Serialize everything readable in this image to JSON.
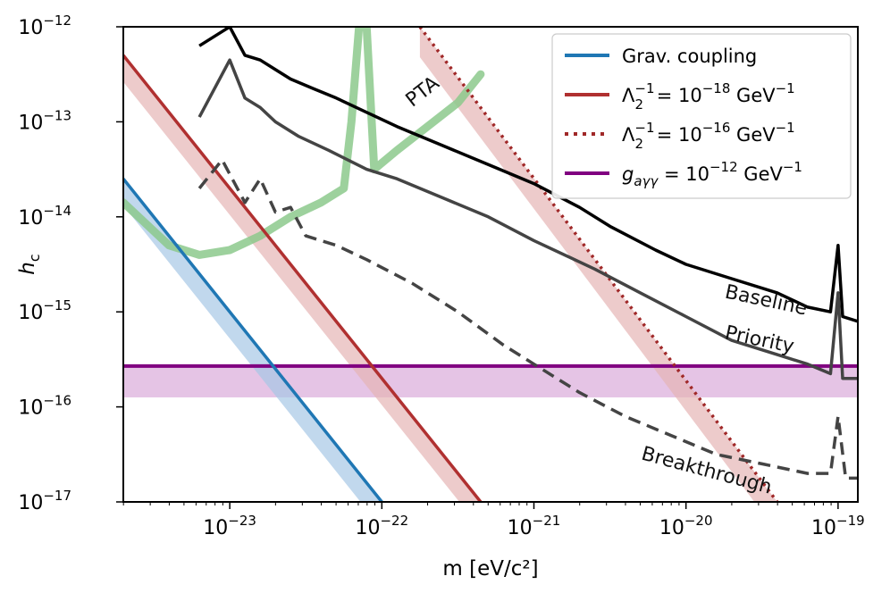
{
  "chart_data": {
    "type": "line",
    "x_scale": "log",
    "y_scale": "log",
    "xlim_log10": [
      -23.7,
      -18.87
    ],
    "ylim_log10": [
      -17,
      -12
    ],
    "xlabel": "m [eV/c²]",
    "ylabel": "h_c",
    "x_ticks": [
      {
        "exp": -23,
        "label_base": "10",
        "label_exp": "−23"
      },
      {
        "exp": -22,
        "label_base": "10",
        "label_exp": "−22"
      },
      {
        "exp": -21,
        "label_base": "10",
        "label_exp": "−21"
      },
      {
        "exp": -20,
        "label_base": "10",
        "label_exp": "−20"
      },
      {
        "exp": -19,
        "label_base": "10",
        "label_exp": "−19"
      }
    ],
    "y_ticks": [
      {
        "exp": -12,
        "label_base": "10",
        "label_exp": "−12"
      },
      {
        "exp": -13,
        "label_base": "10",
        "label_exp": "−13"
      },
      {
        "exp": -14,
        "label_base": "10",
        "label_exp": "−14"
      },
      {
        "exp": -15,
        "label_base": "10",
        "label_exp": "−15"
      },
      {
        "exp": -16,
        "label_base": "10",
        "label_exp": "−16"
      },
      {
        "exp": -17,
        "label_base": "10",
        "label_exp": "−17"
      }
    ],
    "series": [
      {
        "name": "Baseline",
        "label": "Baseline",
        "color": "#000000",
        "style": "solid",
        "points_log10": [
          [
            -23.2,
            -12.2
          ],
          [
            -23.05,
            -12.05
          ],
          [
            -23.0,
            -12.0
          ],
          [
            -22.9,
            -12.3
          ],
          [
            -22.8,
            -12.35
          ],
          [
            -22.7,
            -12.45
          ],
          [
            -22.6,
            -12.55
          ],
          [
            -22.45,
            -12.65
          ],
          [
            -22.3,
            -12.75
          ],
          [
            -22.1,
            -12.9
          ],
          [
            -21.9,
            -13.05
          ],
          [
            -21.6,
            -13.25
          ],
          [
            -21.3,
            -13.45
          ],
          [
            -21.0,
            -13.65
          ],
          [
            -20.7,
            -13.9
          ],
          [
            -20.5,
            -14.1
          ],
          [
            -20.2,
            -14.35
          ],
          [
            -20.0,
            -14.5
          ],
          [
            -19.7,
            -14.65
          ],
          [
            -19.4,
            -14.8
          ],
          [
            -19.2,
            -14.95
          ],
          [
            -19.05,
            -15.0
          ],
          [
            -19.0,
            -14.3
          ],
          [
            -18.97,
            -15.05
          ],
          [
            -18.87,
            -15.1
          ]
        ]
      },
      {
        "name": "Priority",
        "label": "Priority",
        "color": "#444444",
        "style": "solid",
        "points_log10": [
          [
            -23.2,
            -12.95
          ],
          [
            -23.0,
            -12.35
          ],
          [
            -22.9,
            -12.75
          ],
          [
            -22.8,
            -12.85
          ],
          [
            -22.7,
            -13.0
          ],
          [
            -22.55,
            -13.15
          ],
          [
            -22.35,
            -13.3
          ],
          [
            -22.1,
            -13.5
          ],
          [
            -21.9,
            -13.6
          ],
          [
            -21.6,
            -13.8
          ],
          [
            -21.3,
            -14.0
          ],
          [
            -21.0,
            -14.25
          ],
          [
            -20.6,
            -14.55
          ],
          [
            -20.3,
            -14.8
          ],
          [
            -20.0,
            -15.05
          ],
          [
            -19.7,
            -15.3
          ],
          [
            -19.4,
            -15.45
          ],
          [
            -19.2,
            -15.55
          ],
          [
            -19.05,
            -15.65
          ],
          [
            -19.0,
            -14.8
          ],
          [
            -18.97,
            -15.7
          ],
          [
            -18.87,
            -15.7
          ]
        ]
      },
      {
        "name": "Breakthrough",
        "label": "Breakthrough",
        "color": "#444444",
        "style": "dashed",
        "points_log10": [
          [
            -23.2,
            -13.7
          ],
          [
            -23.05,
            -13.4
          ],
          [
            -22.9,
            -13.85
          ],
          [
            -22.8,
            -13.6
          ],
          [
            -22.7,
            -13.95
          ],
          [
            -22.6,
            -13.9
          ],
          [
            -22.5,
            -14.2
          ],
          [
            -22.3,
            -14.3
          ],
          [
            -22.1,
            -14.45
          ],
          [
            -21.8,
            -14.7
          ],
          [
            -21.5,
            -15.0
          ],
          [
            -21.2,
            -15.35
          ],
          [
            -21.0,
            -15.55
          ],
          [
            -20.7,
            -15.85
          ],
          [
            -20.4,
            -16.1
          ],
          [
            -20.1,
            -16.3
          ],
          [
            -19.8,
            -16.5
          ],
          [
            -19.5,
            -16.6
          ],
          [
            -19.2,
            -16.7
          ],
          [
            -19.05,
            -16.7
          ],
          [
            -19.0,
            -16.1
          ],
          [
            -18.95,
            -16.75
          ],
          [
            -18.87,
            -16.75
          ]
        ]
      },
      {
        "name": "PTA",
        "label": "PTA",
        "color": "#8cc98c",
        "style": "thick",
        "points_log10": [
          [
            -23.7,
            -13.85
          ],
          [
            -23.4,
            -14.3
          ],
          [
            -23.2,
            -14.4
          ],
          [
            -23.0,
            -14.35
          ],
          [
            -22.8,
            -14.2
          ],
          [
            -22.6,
            -14.0
          ],
          [
            -22.4,
            -13.85
          ],
          [
            -22.25,
            -13.7
          ],
          [
            -22.2,
            -13.0
          ],
          [
            -22.15,
            -12.0
          ],
          [
            -22.1,
            -12.0
          ],
          [
            -22.05,
            -13.5
          ],
          [
            -21.9,
            -13.3
          ],
          [
            -21.7,
            -13.05
          ],
          [
            -21.5,
            -12.8
          ],
          [
            -21.35,
            -12.5
          ]
        ]
      }
    ],
    "band_lines": [
      {
        "name": "Grav. coupling",
        "color": "#1f77b4",
        "band_color": "#a6c8e6",
        "x_log10": [
          -23.7,
          -22.0
        ],
        "y_log10": [
          -13.6,
          -17.0
        ],
        "band_dy_log10": 0.28,
        "band_side": "below"
      },
      {
        "name": "Λ2−1 = 10−18 GeV−1",
        "color": "#b03030",
        "band_color": "#e5b5b5",
        "x_log10": [
          -23.7,
          -21.35
        ],
        "y_log10": [
          -12.3,
          -17.0
        ],
        "band_dy_log10": 0.28,
        "band_side": "below"
      },
      {
        "name": "Λ2−1 = 10−16 GeV−1",
        "color": "#a02828",
        "band_color": "#e5b5b5",
        "x_log10": [
          -21.75,
          -19.4
        ],
        "y_log10": [
          -12.0,
          -17.0
        ],
        "band_dy_log10": 0.32,
        "band_side": "below",
        "dotted": true
      }
    ],
    "horizontal_band": {
      "name": "gaγγ = 10−12 GeV−1",
      "color": "#800080",
      "band_color": "#dcb0dc",
      "y_log10": -15.57,
      "band_dy_log10": 0.33
    },
    "annotations": [
      {
        "text": "Baseline",
        "x_log10": -19.75,
        "y_log10": -14.85,
        "angle": 12
      },
      {
        "text": "Priority",
        "x_log10": -19.75,
        "y_log10": -15.28,
        "angle": 12
      },
      {
        "text": "Breakthrough",
        "x_log10": -20.3,
        "y_log10": -16.55,
        "angle": 15
      },
      {
        "text": "PTA",
        "x_log10": -21.8,
        "y_log10": -12.85,
        "angle": -38
      }
    ],
    "legend": {
      "position": "top-right",
      "entries": [
        {
          "key": "grav",
          "label": "Grav. coupling",
          "color": "#1f77b4",
          "style": "solid"
        },
        {
          "key": "lam18",
          "label_main": "Λ",
          "sub": "2",
          "sup": "−1",
          "rest": " = 10",
          "rest_sup": "−18",
          "unit": " GeV",
          "unit_sup": "−1",
          "color": "#b03030",
          "style": "solid"
        },
        {
          "key": "lam16",
          "label_main": "Λ",
          "sub": "2",
          "sup": "−1",
          "rest": " = 10",
          "rest_sup": "−16",
          "unit": " GeV",
          "unit_sup": "−1",
          "color": "#a02828",
          "style": "dotted"
        },
        {
          "key": "gagg",
          "label_main": "g",
          "sub": "aγγ",
          "rest": " = 10",
          "rest_sup": "−12",
          "unit": " GeV",
          "unit_sup": "−1",
          "color": "#800080",
          "style": "solid"
        }
      ]
    }
  }
}
